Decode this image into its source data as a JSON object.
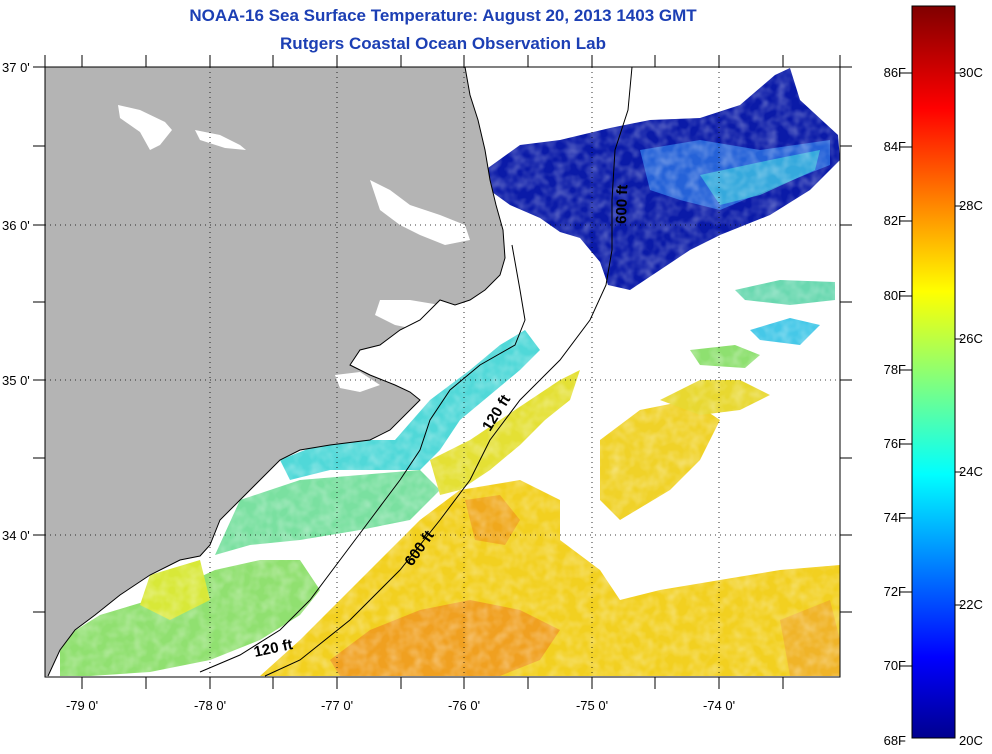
{
  "header": {
    "title_line_1": "NOAA-16 Sea Surface Temperature:  August 20, 2013 1403 GMT",
    "title_line_2": "Rutgers Coastal Ocean Observation Lab"
  },
  "map": {
    "lon_range": [
      -79.3,
      -73.0
    ],
    "lat_range": [
      33.2,
      37.0
    ],
    "lon_tick_labels": [
      "-79 0'",
      "-78 0'",
      "-77 0'",
      "-76 0'",
      "-75 0'",
      "-74 0'"
    ],
    "lat_tick_labels": [
      "37 0'",
      "36 0'",
      "35 0'",
      "34 0'"
    ],
    "isobath_labels": {
      "shelf_120": "120 ft",
      "shelf_120_south": "120 ft",
      "slope_600": "600 ft",
      "slope_600_north": "600 ft"
    },
    "colors": {
      "land": "#b4b4b4",
      "ocean_no_data": "#ffffff",
      "gridline": "#000000"
    }
  },
  "colorbar": {
    "fahrenheit_labels": [
      "86F",
      "84F",
      "82F",
      "80F",
      "78F",
      "76F",
      "74F",
      "72F",
      "70F",
      "68F"
    ],
    "celsius_labels": [
      "30C",
      "28C",
      "26C",
      "24C",
      "22C",
      "20C"
    ],
    "range_c": [
      20,
      31.2
    ],
    "colormap": "jet"
  }
}
